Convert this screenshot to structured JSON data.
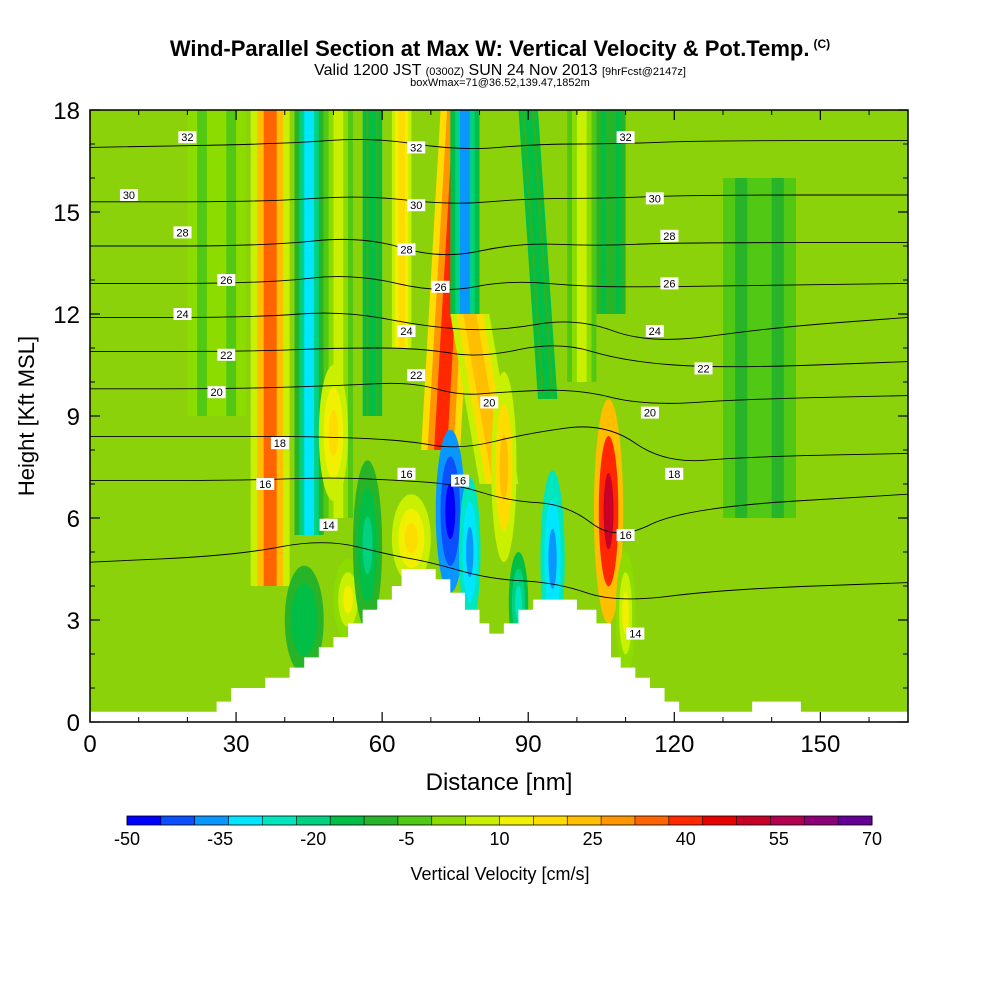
{
  "title": {
    "main": "Wind-Parallel Section at Max W: Vertical Velocity & Pot.Temp.",
    "copyright": "(C)",
    "valid_prefix": "Valid 1200 JST",
    "valid_utc": "(0300Z)",
    "valid_date": "SUN 24 Nov 2013",
    "forecast": "[9hrFcst@2147z]",
    "boxinfo": "boxWmax=71@36.52,139.47,1852m"
  },
  "chart_data": {
    "type": "heatmap",
    "xlabel": "Distance [nm]",
    "ylabel": "Height [Kft MSL]",
    "xlim": [
      0,
      168
    ],
    "ylim": [
      0,
      18
    ],
    "xticks": [
      0,
      30,
      60,
      90,
      120,
      150
    ],
    "yticks": [
      0,
      3,
      6,
      9,
      12,
      15,
      18
    ],
    "colorbar": {
      "label": "Vertical Velocity [cm/s]",
      "tick_labels": [
        "-50",
        "-35",
        "-20",
        "-5",
        "10",
        "25",
        "40",
        "55",
        "70"
      ],
      "colors": [
        "#0000ff",
        "#0a50ff",
        "#0a96ff",
        "#00e6ff",
        "#00e6be",
        "#00d282",
        "#00be46",
        "#28b428",
        "#50c814",
        "#8cdc00",
        "#c8f000",
        "#f0f000",
        "#ffdc00",
        "#ffbe00",
        "#ff9600",
        "#ff6400",
        "#ff2800",
        "#e60000",
        "#c80028",
        "#b40050",
        "#8c0078",
        "#640096"
      ]
    },
    "terrain": [
      [
        0,
        0.3
      ],
      [
        26,
        0.3
      ],
      [
        26,
        0.6
      ],
      [
        29,
        0.6
      ],
      [
        29,
        1.0
      ],
      [
        36,
        1.0
      ],
      [
        36,
        1.3
      ],
      [
        41,
        1.3
      ],
      [
        41,
        1.6
      ],
      [
        44,
        1.6
      ],
      [
        44,
        1.9
      ],
      [
        47,
        1.9
      ],
      [
        47,
        2.2
      ],
      [
        50,
        2.2
      ],
      [
        50,
        2.5
      ],
      [
        53,
        2.5
      ],
      [
        53,
        2.9
      ],
      [
        56,
        2.9
      ],
      [
        56,
        3.3
      ],
      [
        59,
        3.3
      ],
      [
        59,
        3.6
      ],
      [
        62,
        3.6
      ],
      [
        62,
        4.0
      ],
      [
        64,
        4.0
      ],
      [
        64,
        4.5
      ],
      [
        71,
        4.5
      ],
      [
        71,
        4.2
      ],
      [
        74,
        4.2
      ],
      [
        74,
        3.8
      ],
      [
        77,
        3.8
      ],
      [
        77,
        3.3
      ],
      [
        80,
        3.3
      ],
      [
        80,
        2.9
      ],
      [
        82,
        2.9
      ],
      [
        82,
        2.6
      ],
      [
        85,
        2.6
      ],
      [
        85,
        2.9
      ],
      [
        88,
        2.9
      ],
      [
        88,
        3.3
      ],
      [
        91,
        3.3
      ],
      [
        91,
        3.6
      ],
      [
        100,
        3.6
      ],
      [
        100,
        3.3
      ],
      [
        104,
        3.3
      ],
      [
        104,
        2.9
      ],
      [
        107,
        2.9
      ],
      [
        107,
        1.9
      ],
      [
        109,
        1.9
      ],
      [
        109,
        1.6
      ],
      [
        112,
        1.6
      ],
      [
        112,
        1.3
      ],
      [
        115,
        1.3
      ],
      [
        115,
        1.0
      ],
      [
        118,
        1.0
      ],
      [
        118,
        0.6
      ],
      [
        121,
        0.6
      ],
      [
        121,
        0.3
      ],
      [
        136,
        0.3
      ],
      [
        136,
        0.6
      ],
      [
        146,
        0.6
      ],
      [
        146,
        0.3
      ],
      [
        168,
        0.3
      ]
    ],
    "theta_contours": [
      {
        "label": "14",
        "points": [
          [
            0,
            4.7
          ],
          [
            30,
            4.9
          ],
          [
            48,
            5.4
          ],
          [
            62,
            4.9
          ],
          [
            70,
            4.7
          ],
          [
            82,
            4.2
          ],
          [
            96,
            4.1
          ],
          [
            108,
            3.5
          ],
          [
            130,
            3.9
          ],
          [
            168,
            4.1
          ]
        ]
      },
      {
        "label": "16",
        "points": [
          [
            0,
            7.1
          ],
          [
            30,
            7.1
          ],
          [
            50,
            7.2
          ],
          [
            64,
            7.1
          ],
          [
            75,
            7.0
          ],
          [
            86,
            6.5
          ],
          [
            98,
            6.4
          ],
          [
            108,
            5.3
          ],
          [
            122,
            6.3
          ],
          [
            168,
            6.7
          ]
        ]
      },
      {
        "label": "18",
        "points": [
          [
            0,
            8.4
          ],
          [
            30,
            8.4
          ],
          [
            45,
            8.4
          ],
          [
            64,
            8.3
          ],
          [
            76,
            8.0
          ],
          [
            90,
            8.5
          ],
          [
            106,
            8.8
          ],
          [
            118,
            7.6
          ],
          [
            135,
            7.8
          ],
          [
            168,
            7.9
          ]
        ]
      },
      {
        "label": "20",
        "points": [
          [
            0,
            9.8
          ],
          [
            30,
            9.8
          ],
          [
            52,
            9.9
          ],
          [
            66,
            10.0
          ],
          [
            76,
            9.6
          ],
          [
            84,
            9.7
          ],
          [
            100,
            9.8
          ],
          [
            114,
            9.3
          ],
          [
            135,
            9.5
          ],
          [
            168,
            9.6
          ]
        ]
      },
      {
        "label": "22",
        "points": [
          [
            0,
            10.9
          ],
          [
            34,
            10.9
          ],
          [
            50,
            11.0
          ],
          [
            68,
            11.0
          ],
          [
            80,
            10.7
          ],
          [
            96,
            11.2
          ],
          [
            110,
            10.6
          ],
          [
            130,
            10.4
          ],
          [
            168,
            10.6
          ]
        ]
      },
      {
        "label": "24",
        "points": [
          [
            0,
            11.9
          ],
          [
            34,
            11.9
          ],
          [
            52,
            12.1
          ],
          [
            70,
            11.6
          ],
          [
            84,
            11.5
          ],
          [
            100,
            11.9
          ],
          [
            115,
            11.1
          ],
          [
            140,
            11.6
          ],
          [
            168,
            11.9
          ]
        ]
      },
      {
        "label": "26",
        "points": [
          [
            0,
            12.9
          ],
          [
            36,
            12.9
          ],
          [
            54,
            13.2
          ],
          [
            72,
            12.6
          ],
          [
            86,
            13.0
          ],
          [
            102,
            12.8
          ],
          [
            118,
            12.8
          ],
          [
            168,
            12.9
          ]
        ]
      },
      {
        "label": "28",
        "points": [
          [
            0,
            14.0
          ],
          [
            36,
            14.0
          ],
          [
            56,
            14.3
          ],
          [
            72,
            13.6
          ],
          [
            88,
            14.1
          ],
          [
            104,
            14.0
          ],
          [
            120,
            14.1
          ],
          [
            168,
            14.1
          ]
        ]
      },
      {
        "label": "30",
        "points": [
          [
            0,
            15.3
          ],
          [
            36,
            15.3
          ],
          [
            56,
            15.5
          ],
          [
            74,
            15.2
          ],
          [
            90,
            15.4
          ],
          [
            106,
            15.4
          ],
          [
            124,
            15.5
          ],
          [
            168,
            15.5
          ]
        ]
      },
      {
        "label": "32",
        "points": [
          [
            0,
            16.9
          ],
          [
            40,
            17.0
          ],
          [
            58,
            17.2
          ],
          [
            76,
            16.8
          ],
          [
            92,
            17.0
          ],
          [
            108,
            17.0
          ],
          [
            126,
            17.1
          ],
          [
            168,
            17.1
          ]
        ]
      }
    ],
    "label_markers": [
      {
        "label": "32",
        "x": 20,
        "y": 17.2
      },
      {
        "label": "32",
        "x": 67,
        "y": 16.9
      },
      {
        "label": "32",
        "x": 110,
        "y": 17.2
      },
      {
        "label": "30",
        "x": 8,
        "y": 15.5
      },
      {
        "label": "30",
        "x": 67,
        "y": 15.2
      },
      {
        "label": "30",
        "x": 116,
        "y": 15.4
      },
      {
        "label": "28",
        "x": 19,
        "y": 14.4
      },
      {
        "label": "28",
        "x": 65,
        "y": 13.9
      },
      {
        "label": "28",
        "x": 119,
        "y": 14.3
      },
      {
        "label": "26",
        "x": 28,
        "y": 13.0
      },
      {
        "label": "26",
        "x": 72,
        "y": 12.8
      },
      {
        "label": "26",
        "x": 119,
        "y": 12.9
      },
      {
        "label": "24",
        "x": 19,
        "y": 12.0
      },
      {
        "label": "24",
        "x": 65,
        "y": 11.5
      },
      {
        "label": "24",
        "x": 116,
        "y": 11.5
      },
      {
        "label": "22",
        "x": 28,
        "y": 10.8
      },
      {
        "label": "22",
        "x": 67,
        "y": 10.2
      },
      {
        "label": "22",
        "x": 126,
        "y": 10.4
      },
      {
        "label": "20",
        "x": 26,
        "y": 9.7
      },
      {
        "label": "20",
        "x": 82,
        "y": 9.4
      },
      {
        "label": "20",
        "x": 115,
        "y": 9.1
      },
      {
        "label": "18",
        "x": 39,
        "y": 8.2
      },
      {
        "label": "18",
        "x": 120,
        "y": 7.3
      },
      {
        "label": "16",
        "x": 36,
        "y": 7.0
      },
      {
        "label": "16",
        "x": 65,
        "y": 7.3
      },
      {
        "label": "16",
        "x": 76,
        "y": 7.1
      },
      {
        "label": "16",
        "x": 110,
        "y": 5.5
      },
      {
        "label": "14",
        "x": 49,
        "y": 5.8
      },
      {
        "label": "14",
        "x": 112,
        "y": 2.6
      }
    ]
  }
}
